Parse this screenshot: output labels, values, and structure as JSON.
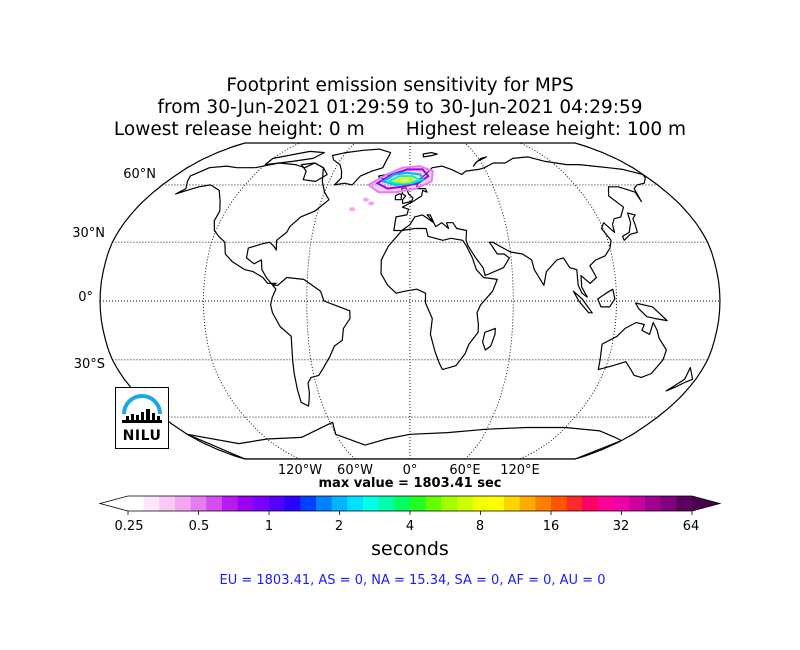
{
  "title": {
    "line1": "Footprint emission sensitivity for MPS",
    "line2": "from 30-Jun-2021 01:29:59 to 30-Jun-2021 04:29:59",
    "line3": "Lowest release height: 0 m       Highest release height: 100 m"
  },
  "map": {
    "projection": "robinson",
    "lat_labels": [
      "60°N",
      "30°N",
      "0°",
      "30°S"
    ],
    "lon_labels": [
      "120°W",
      "60°W",
      "0°",
      "60°E",
      "120°E"
    ],
    "coast_color": "#000000",
    "grid_style": "dotted",
    "plume_location": "Northern Europe / North Atlantic (~55–70°N, 20°W–20°E)"
  },
  "max_value_text": "max value = 1803.41 sec",
  "colorbar": {
    "tick_labels": [
      "0.25",
      "0.5",
      "1",
      "2",
      "4",
      "8",
      "16",
      "32",
      "64"
    ],
    "colors": [
      "#ffffff",
      "#fde6fb",
      "#f8c8f7",
      "#f2a6f3",
      "#e67cf0",
      "#d34ef0",
      "#b81bf0",
      "#9b00f5",
      "#7a00ff",
      "#5500ff",
      "#2b00ff",
      "#0040ff",
      "#0080ff",
      "#00b4ff",
      "#00e0ff",
      "#00ffe6",
      "#00ffaa",
      "#00ff60",
      "#22ff22",
      "#66ff00",
      "#a0ff00",
      "#ccff00",
      "#f2ff00",
      "#ffff00",
      "#ffd500",
      "#ffaa00",
      "#ff8000",
      "#ff5500",
      "#ff2a2a",
      "#ff0066",
      "#ff0099",
      "#f000a8",
      "#cc00a0",
      "#a00090",
      "#800080",
      "#5c0060"
    ],
    "units": "seconds"
  },
  "regions_text": "EU = 1803.41,  AS = 0,  NA = 15.34,  SA = 0,  AF = 0,  AU = 0",
  "logo": {
    "text": "NILU",
    "arc_color": "#1aa7e8"
  }
}
